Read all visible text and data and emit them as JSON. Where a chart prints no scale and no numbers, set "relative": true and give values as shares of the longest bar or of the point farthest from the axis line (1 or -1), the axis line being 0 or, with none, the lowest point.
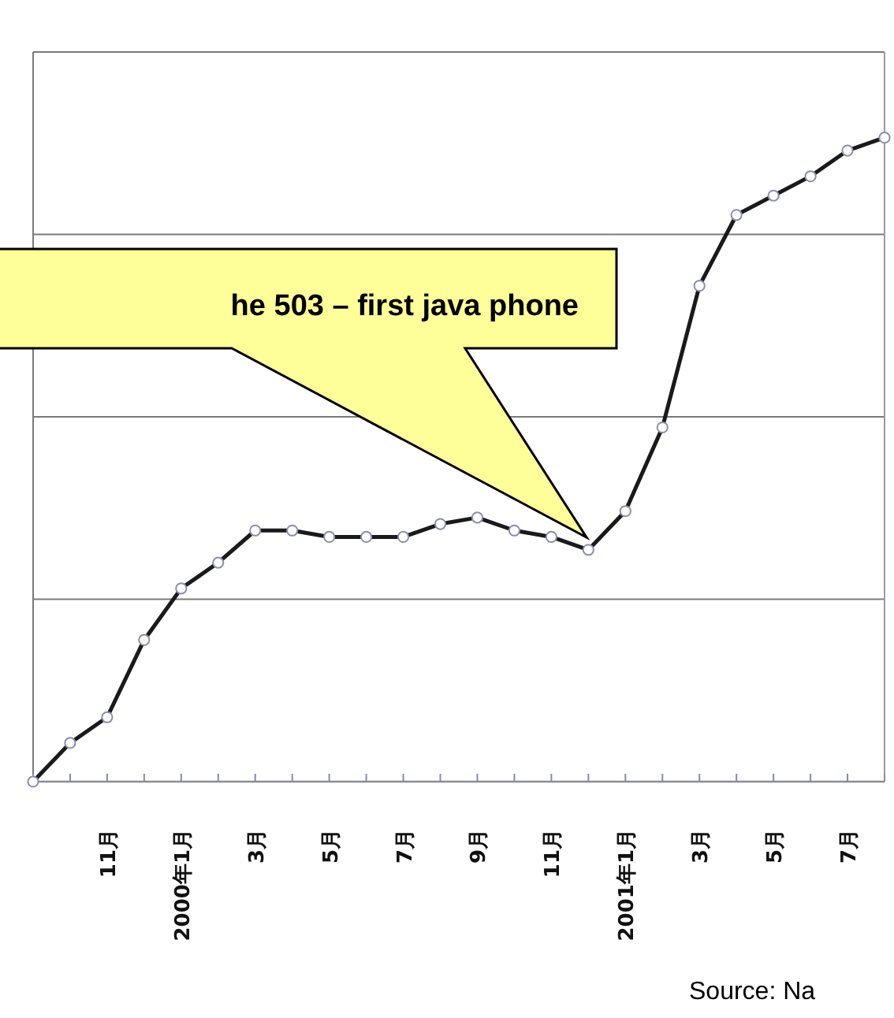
{
  "chart_data": {
    "type": "line",
    "relative": true,
    "grid": "y",
    "marker": "circle",
    "line_style": "solid",
    "categories": [
      null,
      null,
      "11月",
      null,
      "2000年1月",
      null,
      "3月",
      null,
      "5月",
      null,
      "7月",
      null,
      "9月",
      null,
      "11月",
      null,
      "2001年1月",
      null,
      "3月",
      null,
      "5月",
      null,
      "7月",
      null
    ],
    "series": [
      {
        "color": "#1a1a1a",
        "values": [
          0,
          0.06,
          0.1,
          0.22,
          0.3,
          0.34,
          0.39,
          0.39,
          0.38,
          0.38,
          0.38,
          0.4,
          0.41,
          0.39,
          0.38,
          0.36,
          0.42,
          0.55,
          0.77,
          0.88,
          0.91,
          0.94,
          0.98,
          1
        ]
      }
    ],
    "annotations": [
      "he 503 – first java phone",
      "Source: Na"
    ]
  }
}
